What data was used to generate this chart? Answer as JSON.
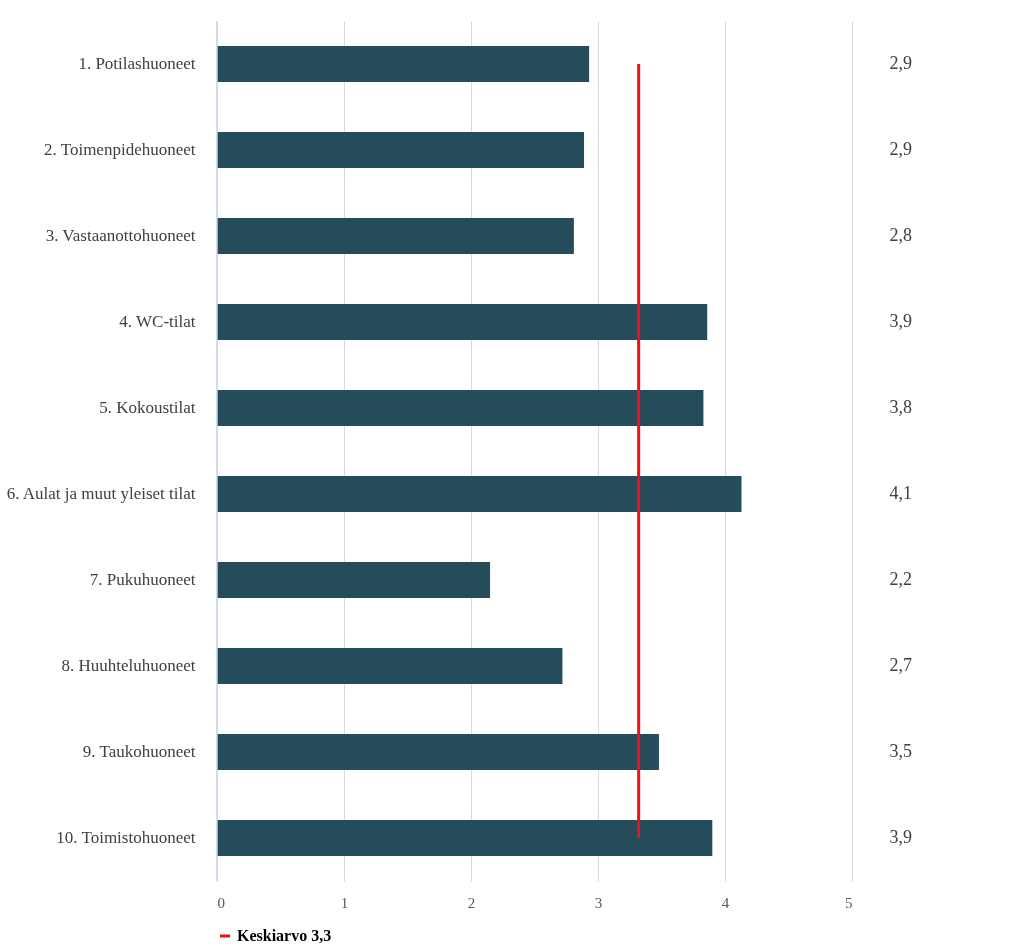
{
  "chart_data": {
    "type": "bar",
    "orientation": "horizontal",
    "categories": [
      "1. Potilashuoneet",
      "2. Toimenpidehuoneet",
      "3. Vastaanottohuoneet",
      "4. WC-tilat",
      "5. Kokoustilat",
      "6. Aulat ja muut yleiset tilat",
      "7. Pukuhuoneet",
      "8. Huuhteluhuoneet",
      "9. Taukohuoneet",
      "10. Toimistohuoneet"
    ],
    "values": [
      2.93,
      2.89,
      2.81,
      3.86,
      3.83,
      4.13,
      2.15,
      2.72,
      3.48,
      3.9
    ],
    "value_labels": [
      "2,9",
      "2,9",
      "2,8",
      "3,9",
      "3,8",
      "4,1",
      "2,2",
      "2,7",
      "3,5",
      "3,9"
    ],
    "color": "#244c5a",
    "xlim": [
      0,
      5
    ],
    "xticks": [
      0,
      1,
      2,
      3,
      4,
      5
    ],
    "grid": "x",
    "ref_lines": [
      {
        "axis": "x",
        "value": 3.32,
        "label": "Keskiarvo 3,3",
        "color": "#e8131b"
      }
    ],
    "legend": "bottom"
  }
}
